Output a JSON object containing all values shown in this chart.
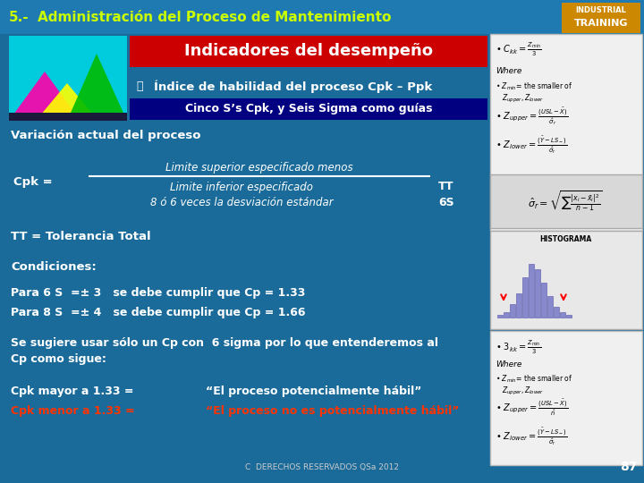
{
  "title_number": "5.-",
  "title_text": "  Administración del Proceso de Mantenimiento",
  "header_text": "Indicadores del desempeño",
  "subtitle_text": "Índice de habilidad del proceso Cpk – Ppk",
  "blue_bar_text": "Cinco S’s Cpk, y Seis Sigma como guías",
  "variation_text": "Variación actual del proceso",
  "cpk_label": "Cpk =",
  "numerator_line1": "Limite superior especificado menos",
  "numerator_line2": "Limite inferior especificado",
  "tt_label": "TT",
  "denominator_text": "8 ó 6 veces la desviación estándar",
  "six_s_label": "6S",
  "tt_def": "TT = Tolerancia Total",
  "condiciones": "Condiciones:",
  "para6s": "Para 6 S  =± 3   se debe cumplir que Cp = 1.33",
  "para8s": "Para 8 S  =± 4   se debe cumplir que Cp = 1.66",
  "sugiere1": "Se sugiere usar sólo un Cp con  6 sigma por lo que entenderemos al",
  "sugiere2": "Cp como sigue:",
  "cpk_mayor": "Cpk mayor a 1.33 =",
  "cpk_mayor_quote": "“El proceso potencialmente hábil”",
  "cpk_menor_label": "Cpk menor a 1.33 =",
  "cpk_menor_quote": "“El proceso no es potencialmente hábil”",
  "footer": "C  DERECHOS RESERVADOS QSa 2012",
  "page_num": "87",
  "bg_color": "#1a6b9a",
  "header_bg": "#cc0000",
  "subheader_bg": "#000080",
  "title_color": "#ccff00",
  "header_color": "#ffffff",
  "body_color": "#ffffff",
  "cpk_menor_color": "#ff3300",
  "cpk_menor_quote_color": "#ff3300"
}
